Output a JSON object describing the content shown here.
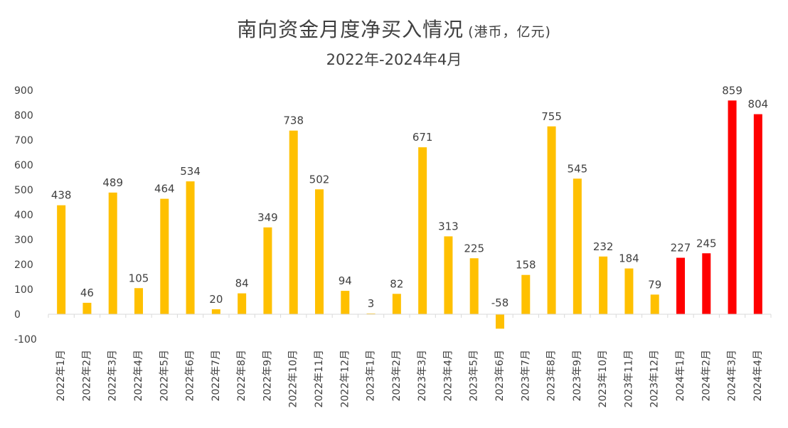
{
  "chart_data": {
    "type": "bar",
    "title": "南向资金月度净买入情况",
    "unit": "(港币，亿元)",
    "subtitle": "2022年-2024年4月",
    "xlabel": "",
    "ylabel": "",
    "ylim": [
      -100,
      900
    ],
    "yticks": [
      900,
      800,
      700,
      600,
      500,
      400,
      300,
      200,
      100,
      0,
      -100
    ],
    "grid": false,
    "legend": "none",
    "categories": [
      "2022年1月",
      "2022年2月",
      "2022年3月",
      "2022年4月",
      "2022年5月",
      "2022年6月",
      "2022年7月",
      "2022年8月",
      "2022年9月",
      "2022年10月",
      "2022年11月",
      "2022年12月",
      "2023年1月",
      "2023年2月",
      "2023年3月",
      "2023年4月",
      "2023年5月",
      "2023年6月",
      "2023年7月",
      "2023年8月",
      "2023年9月",
      "2023年10月",
      "2023年11月",
      "2023年12月",
      "2024年1月",
      "2024年2月",
      "2024年3月",
      "2024年4月"
    ],
    "values": [
      438,
      46,
      489,
      105,
      464,
      534,
      20,
      84,
      349,
      738,
      502,
      94,
      3,
      82,
      671,
      313,
      225,
      -58,
      158,
      755,
      545,
      232,
      184,
      79,
      227,
      245,
      859,
      804
    ],
    "colors": {
      "default": "#FFC000",
      "highlight": "#FF0000",
      "axis": "#D9D9D9",
      "text": "#404040"
    },
    "highlight_from_index": 24
  }
}
